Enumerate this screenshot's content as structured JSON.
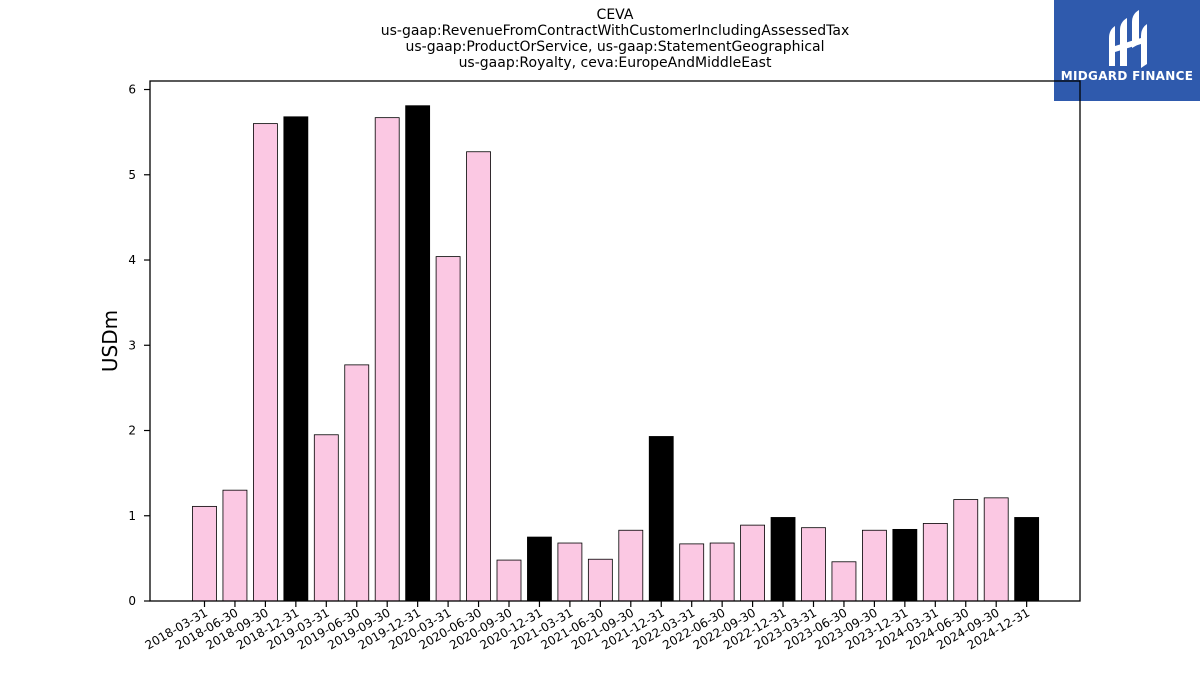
{
  "header": {
    "title_lines": [
      "CEVA",
      "us-gaap:RevenueFromContractWithCustomerIncludingAssessedTax",
      "us-gaap:ProductOrService, us-gaap:StatementGeographical",
      "us-gaap:Royalty, ceva:EuropeAndMiddleEast"
    ]
  },
  "logo": {
    "text": "MIDGARD FINANCE",
    "icon": "midgard-logo-icon",
    "background": "#2f5aad"
  },
  "colors": {
    "quarter_bar": "#fbc8e3",
    "year_end_bar": "#000000",
    "bar_edge": "#000000"
  },
  "chart_data": {
    "type": "bar",
    "title": "CEVA\nus-gaap:RevenueFromContractWithCustomerIncludingAssessedTax\nus-gaap:ProductOrService, us-gaap:StatementGeographical\nus-gaap:Royalty, ceva:EuropeAndMiddleEast",
    "xlabel": "",
    "ylabel": "USDm",
    "ylim": [
      0,
      6.1
    ],
    "yticks": [
      0,
      1,
      2,
      3,
      4,
      5,
      6
    ],
    "grid": false,
    "categories": [
      "2018-03-31",
      "2018-06-30",
      "2018-09-30",
      "2018-12-31",
      "2019-03-31",
      "2019-06-30",
      "2019-09-30",
      "2019-12-31",
      "2020-03-31",
      "2020-06-30",
      "2020-09-30",
      "2020-12-31",
      "2021-03-31",
      "2021-06-30",
      "2021-09-30",
      "2021-12-31",
      "2022-03-31",
      "2022-06-30",
      "2022-09-30",
      "2022-12-31",
      "2023-03-31",
      "2023-06-30",
      "2023-09-30",
      "2023-12-31",
      "2024-03-31",
      "2024-06-30",
      "2024-09-30",
      "2024-12-31"
    ],
    "values": [
      1.11,
      1.3,
      5.6,
      5.68,
      1.95,
      2.77,
      5.67,
      5.81,
      4.04,
      5.27,
      0.48,
      0.75,
      0.68,
      0.49,
      0.83,
      1.93,
      0.67,
      0.68,
      0.89,
      0.98,
      0.86,
      0.46,
      0.83,
      0.84,
      0.91,
      1.19,
      1.21,
      0.98
    ]
  }
}
